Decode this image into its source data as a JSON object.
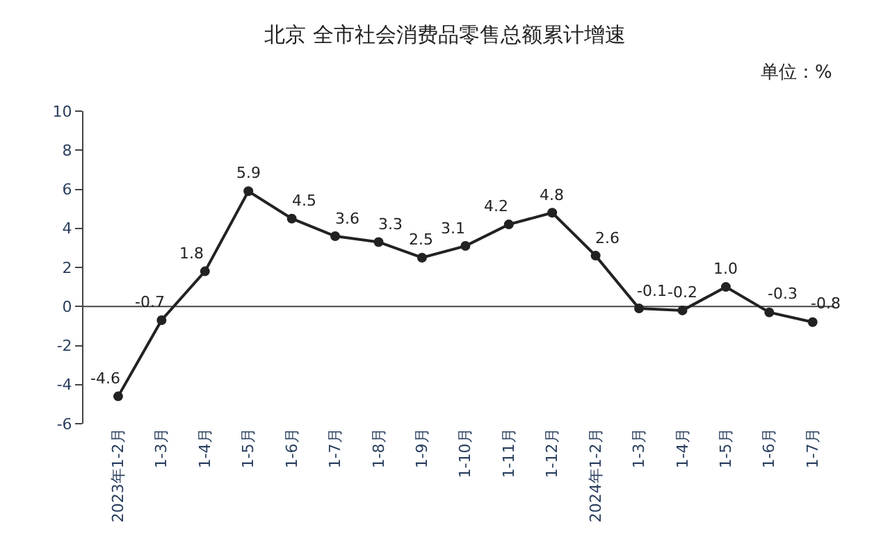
{
  "chart_data": {
    "type": "line",
    "title": "北京 全市社会消费品零售总额累计增速",
    "annotations": [
      "单位：%"
    ],
    "categories": [
      "2023年1-2月",
      "1-3月",
      "1-4月",
      "1-5月",
      "1-6月",
      "1-7月",
      "1-8月",
      "1-9月",
      "1-10月",
      "1-11月",
      "1-12月",
      "2024年1-2月",
      "1-3月",
      "1-4月",
      "1-5月",
      "1-6月",
      "1-7月"
    ],
    "series": [
      {
        "color": "#222222",
        "values": [
          -4.6,
          -0.7,
          1.8,
          5.9,
          4.5,
          3.6,
          3.3,
          2.5,
          3.1,
          4.2,
          4.8,
          2.6,
          -0.1,
          -0.2,
          1.0,
          -0.3,
          -0.8
        ],
        "value_labels": [
          "-4.6",
          "-0.7",
          "1.8",
          "5.9",
          "4.5",
          "3.6",
          "3.3",
          "2.5",
          "3.1",
          "4.2",
          "4.8",
          "2.6",
          "-0.1",
          "-0.2",
          "1.0",
          "-0.3",
          "-0.8"
        ]
      }
    ],
    "ylim": [
      -6,
      10
    ],
    "yticks": [
      -6,
      -4,
      -2,
      0,
      2,
      4,
      6,
      8,
      10
    ],
    "grid": false,
    "ref_lines": [
      {
        "axis": "y",
        "value": 0,
        "color": "#444444"
      }
    ],
    "legend": false,
    "marker": "circle",
    "line_style": "solid"
  }
}
